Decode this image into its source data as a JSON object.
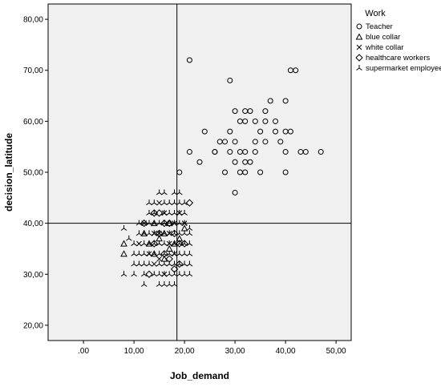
{
  "chart_data": {
    "type": "scatter",
    "xlabel": "Job_demand",
    "ylabel": "decision_latitude",
    "xlim": [
      -7,
      53
    ],
    "ylim": [
      17,
      83
    ],
    "x_ticks": [
      ".00",
      "10,00",
      "20,00",
      "30,00",
      "40,00",
      "50,00"
    ],
    "x_tick_values": [
      0,
      10,
      20,
      30,
      40,
      50
    ],
    "y_ticks": [
      "20,00",
      "30,00",
      "40,00",
      "50,00",
      "60,00",
      "70,00",
      "80,00"
    ],
    "y_tick_values": [
      20,
      30,
      40,
      50,
      60,
      70,
      80
    ],
    "reference_lines": {
      "x": 18.5,
      "y": 40
    },
    "grid": false,
    "legend": {
      "title": "Work",
      "position": "right"
    },
    "background_color": "#f0f0f0",
    "series": [
      {
        "name": "Teacher",
        "marker": "circle",
        "points": [
          [
            21,
            72
          ],
          [
            29,
            68
          ],
          [
            41,
            70
          ],
          [
            42,
            70
          ],
          [
            32,
            62
          ],
          [
            33,
            62
          ],
          [
            37,
            64
          ],
          [
            40,
            64
          ],
          [
            24,
            58
          ],
          [
            29,
            58
          ],
          [
            35,
            58
          ],
          [
            38,
            58
          ],
          [
            40,
            58
          ],
          [
            41,
            58
          ],
          [
            26,
            54
          ],
          [
            27,
            56
          ],
          [
            28,
            56
          ],
          [
            30,
            56
          ],
          [
            29,
            54
          ],
          [
            31,
            54
          ],
          [
            32,
            54
          ],
          [
            34,
            54
          ],
          [
            31,
            60
          ],
          [
            32,
            60
          ],
          [
            34,
            60
          ],
          [
            36,
            60
          ],
          [
            38,
            60
          ],
          [
            30,
            62
          ],
          [
            36,
            62
          ],
          [
            39,
            56
          ],
          [
            30,
            52
          ],
          [
            32,
            52
          ],
          [
            34,
            56
          ],
          [
            21,
            54
          ],
          [
            28,
            50
          ],
          [
            31,
            50
          ],
          [
            32,
            50
          ],
          [
            35,
            50
          ],
          [
            40,
            50
          ],
          [
            23,
            52
          ],
          [
            19,
            50
          ],
          [
            30,
            46
          ],
          [
            40,
            54
          ],
          [
            43,
            54
          ],
          [
            44,
            54
          ],
          [
            47,
            54
          ],
          [
            36,
            56
          ],
          [
            33,
            52
          ],
          [
            26,
            54
          ]
        ]
      },
      {
        "name": "blue collar",
        "marker": "triangle",
        "points": [
          [
            8,
            36
          ],
          [
            8,
            34
          ],
          [
            12,
            38
          ],
          [
            13,
            36
          ],
          [
            14,
            40
          ],
          [
            15,
            37
          ],
          [
            16,
            38
          ],
          [
            17,
            40
          ],
          [
            18,
            36
          ],
          [
            14,
            34
          ],
          [
            16,
            33
          ],
          [
            17,
            35
          ],
          [
            19,
            37
          ],
          [
            20,
            39
          ]
        ]
      },
      {
        "name": "white collar",
        "marker": "cross",
        "points": [
          [
            11,
            36
          ],
          [
            12,
            40
          ],
          [
            14,
            38
          ],
          [
            15,
            44
          ],
          [
            16,
            42
          ],
          [
            17,
            38
          ],
          [
            18,
            40
          ],
          [
            19,
            42
          ],
          [
            13,
            34
          ],
          [
            15,
            33
          ],
          [
            17,
            36
          ],
          [
            20,
            40
          ],
          [
            16,
            30
          ],
          [
            14,
            32
          ],
          [
            18,
            34
          ],
          [
            15,
            38
          ]
        ]
      },
      {
        "name": "healthcare workers",
        "marker": "diamond",
        "points": [
          [
            21,
            44
          ],
          [
            12,
            40
          ],
          [
            14,
            42
          ],
          [
            15,
            42
          ],
          [
            16,
            40
          ],
          [
            17,
            40
          ],
          [
            18,
            38
          ],
          [
            19,
            36
          ],
          [
            20,
            36
          ],
          [
            13,
            30
          ],
          [
            16,
            34
          ],
          [
            19,
            32
          ],
          [
            14,
            36
          ],
          [
            17,
            33
          ],
          [
            15,
            38
          ],
          [
            18,
            31
          ]
        ]
      },
      {
        "name": "supermarket employee",
        "marker": "tri-star",
        "points": [
          [
            8,
            39
          ],
          [
            8,
            30
          ],
          [
            9,
            37
          ],
          [
            10,
            34
          ],
          [
            10,
            32
          ],
          [
            10,
            30
          ],
          [
            11,
            32
          ],
          [
            11,
            34
          ],
          [
            11,
            38
          ],
          [
            12,
            30
          ],
          [
            12,
            32
          ],
          [
            12,
            34
          ],
          [
            12,
            36
          ],
          [
            12,
            28
          ],
          [
            13,
            32
          ],
          [
            13,
            34
          ],
          [
            13,
            36
          ],
          [
            13,
            38
          ],
          [
            13,
            40
          ],
          [
            13,
            42
          ],
          [
            14,
            30
          ],
          [
            14,
            34
          ],
          [
            14,
            36
          ],
          [
            14,
            38
          ],
          [
            14,
            40
          ],
          [
            14,
            42
          ],
          [
            14,
            44
          ],
          [
            15,
            28
          ],
          [
            15,
            30
          ],
          [
            15,
            32
          ],
          [
            15,
            34
          ],
          [
            15,
            36
          ],
          [
            15,
            40
          ],
          [
            15,
            46
          ],
          [
            16,
            28
          ],
          [
            16,
            32
          ],
          [
            16,
            34
          ],
          [
            16,
            36
          ],
          [
            16,
            38
          ],
          [
            16,
            40
          ],
          [
            16,
            42
          ],
          [
            16,
            44
          ],
          [
            16,
            46
          ],
          [
            17,
            28
          ],
          [
            17,
            30
          ],
          [
            17,
            32
          ],
          [
            17,
            34
          ],
          [
            17,
            36
          ],
          [
            17,
            38
          ],
          [
            17,
            42
          ],
          [
            17,
            44
          ],
          [
            18,
            30
          ],
          [
            18,
            32
          ],
          [
            18,
            34
          ],
          [
            18,
            36
          ],
          [
            18,
            38
          ],
          [
            18,
            40
          ],
          [
            18,
            42
          ],
          [
            18,
            44
          ],
          [
            18,
            46
          ],
          [
            19,
            30
          ],
          [
            19,
            34
          ],
          [
            19,
            36
          ],
          [
            19,
            38
          ],
          [
            19,
            40
          ],
          [
            19,
            42
          ],
          [
            19,
            44
          ],
          [
            20,
            30
          ],
          [
            20,
            32
          ],
          [
            20,
            34
          ],
          [
            20,
            36
          ],
          [
            20,
            38
          ],
          [
            20,
            40
          ],
          [
            20,
            42
          ],
          [
            21,
            30
          ],
          [
            21,
            32
          ],
          [
            21,
            34
          ],
          [
            21,
            36
          ],
          [
            21,
            38
          ],
          [
            21,
            39
          ],
          [
            13,
            44
          ],
          [
            19,
            46
          ],
          [
            12,
            38
          ],
          [
            11,
            40
          ],
          [
            10,
            36
          ],
          [
            15,
            38
          ],
          [
            19,
            32
          ],
          [
            20,
            44
          ],
          [
            16,
            30
          ],
          [
            18,
            28
          ]
        ]
      }
    ]
  }
}
